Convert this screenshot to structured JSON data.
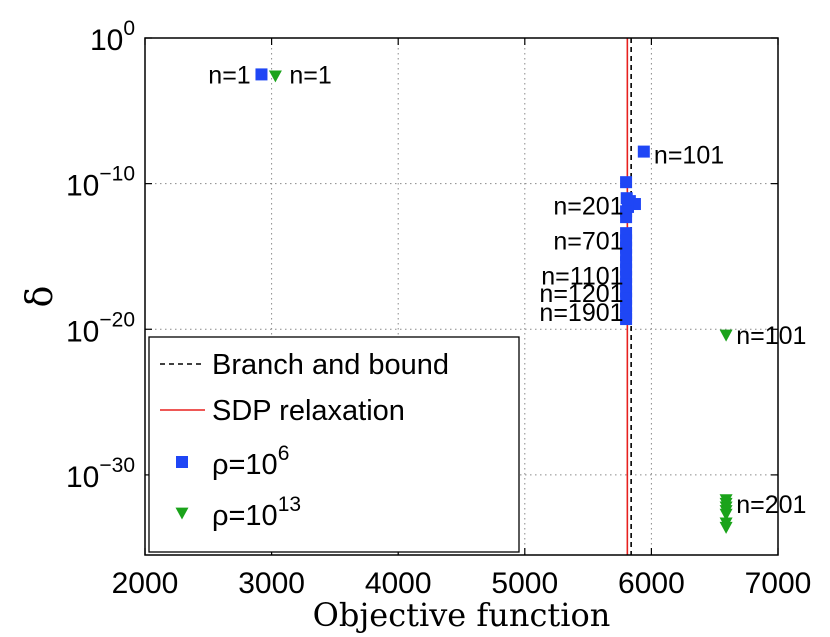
{
  "chart_data": {
    "type": "scatter",
    "title": "",
    "xlabel": "Objective function",
    "ylabel": "δ",
    "xlim": [
      2000,
      7000
    ],
    "ylim_log10": [
      -35.5,
      0
    ],
    "yscale": "log",
    "grid": true,
    "x_ticks": [
      2000,
      3000,
      4000,
      5000,
      6000,
      7000
    ],
    "x_tick_labels": [
      "2000",
      "3000",
      "4000",
      "5000",
      "6000",
      "7000"
    ],
    "y_tick_exponents": [
      0,
      -10,
      -20,
      -30
    ],
    "y_tick_labels": [
      {
        "base": "10",
        "exp": "0"
      },
      {
        "base": "10",
        "exp": "−10"
      },
      {
        "base": "10",
        "exp": "−20"
      },
      {
        "base": "10",
        "exp": "−30"
      }
    ],
    "vertical_lines": [
      {
        "name": "Branch and bound",
        "x": 5840,
        "color": "#000000",
        "style": "dashed"
      },
      {
        "name": "SDP relaxation",
        "x": 5810,
        "color": "#e8201e",
        "style": "solid"
      }
    ],
    "series": [
      {
        "name": "ρ=10^6",
        "legend_label": {
          "base": "ρ=10",
          "exp": "6"
        },
        "marker": "square",
        "color": "#1f46f5",
        "points": [
          {
            "x": 2920,
            "log10_y": -2.5
          },
          {
            "x": 5940,
            "log10_y": -7.8
          },
          {
            "x": 5800,
            "log10_y": -9.9
          },
          {
            "x": 5805,
            "log10_y": -11.0
          },
          {
            "x": 5830,
            "log10_y": -11.2
          },
          {
            "x": 5870,
            "log10_y": -11.4
          },
          {
            "x": 5815,
            "log10_y": -11.6
          },
          {
            "x": 5800,
            "log10_y": -11.9
          },
          {
            "x": 5800,
            "log10_y": -12.3
          },
          {
            "x": 5800,
            "log10_y": -13.4
          },
          {
            "x": 5800,
            "log10_y": -13.9
          },
          {
            "x": 5800,
            "log10_y": -14.4
          },
          {
            "x": 5800,
            "log10_y": -14.9
          },
          {
            "x": 5800,
            "log10_y": -15.4
          },
          {
            "x": 5800,
            "log10_y": -15.9
          },
          {
            "x": 5800,
            "log10_y": -16.4
          },
          {
            "x": 5800,
            "log10_y": -16.9
          },
          {
            "x": 5800,
            "log10_y": -17.4
          },
          {
            "x": 5800,
            "log10_y": -17.9
          },
          {
            "x": 5800,
            "log10_y": -18.4
          },
          {
            "x": 5800,
            "log10_y": -18.9
          },
          {
            "x": 5800,
            "log10_y": -19.3
          }
        ]
      },
      {
        "name": "ρ=10^13",
        "legend_label": {
          "base": "ρ=10",
          "exp": "13"
        },
        "marker": "triangle-down",
        "color": "#1aa31a",
        "points": [
          {
            "x": 3030,
            "log10_y": -2.6
          },
          {
            "x": 6590,
            "log10_y": -20.4
          },
          {
            "x": 6590,
            "log10_y": -31.7
          },
          {
            "x": 6590,
            "log10_y": -31.95
          },
          {
            "x": 6590,
            "log10_y": -32.2
          },
          {
            "x": 6590,
            "log10_y": -32.45
          },
          {
            "x": 6590,
            "log10_y": -32.7
          },
          {
            "x": 6590,
            "log10_y": -33.3
          },
          {
            "x": 6590,
            "log10_y": -33.6
          }
        ]
      }
    ],
    "annotations": [
      {
        "text": "n=1",
        "x": 2500,
        "log10_y": -2.5,
        "anchor": "start"
      },
      {
        "text": "n=1",
        "x": 3140,
        "log10_y": -2.5,
        "anchor": "start"
      },
      {
        "text": "n=101",
        "x": 6020,
        "log10_y": -8.0,
        "anchor": "start"
      },
      {
        "text": "n=201",
        "x": 5780,
        "log10_y": -11.5,
        "anchor": "end"
      },
      {
        "text": "n=701",
        "x": 5780,
        "log10_y": -13.9,
        "anchor": "end"
      },
      {
        "text": "n=1101",
        "x": 5780,
        "log10_y": -16.3,
        "anchor": "end"
      },
      {
        "text": "n=1201",
        "x": 5780,
        "log10_y": -17.5,
        "anchor": "end"
      },
      {
        "text": "n=1901",
        "x": 5780,
        "log10_y": -18.8,
        "anchor": "end"
      },
      {
        "text": "n=101",
        "x": 6670,
        "log10_y": -20.4,
        "anchor": "start"
      },
      {
        "text": "n=201",
        "x": 6670,
        "log10_y": -32.0,
        "anchor": "start"
      }
    ],
    "legend": {
      "placement": "bottom-left",
      "entries": [
        {
          "label": "Branch and bound"
        },
        {
          "label": "SDP relaxation"
        }
      ]
    }
  }
}
